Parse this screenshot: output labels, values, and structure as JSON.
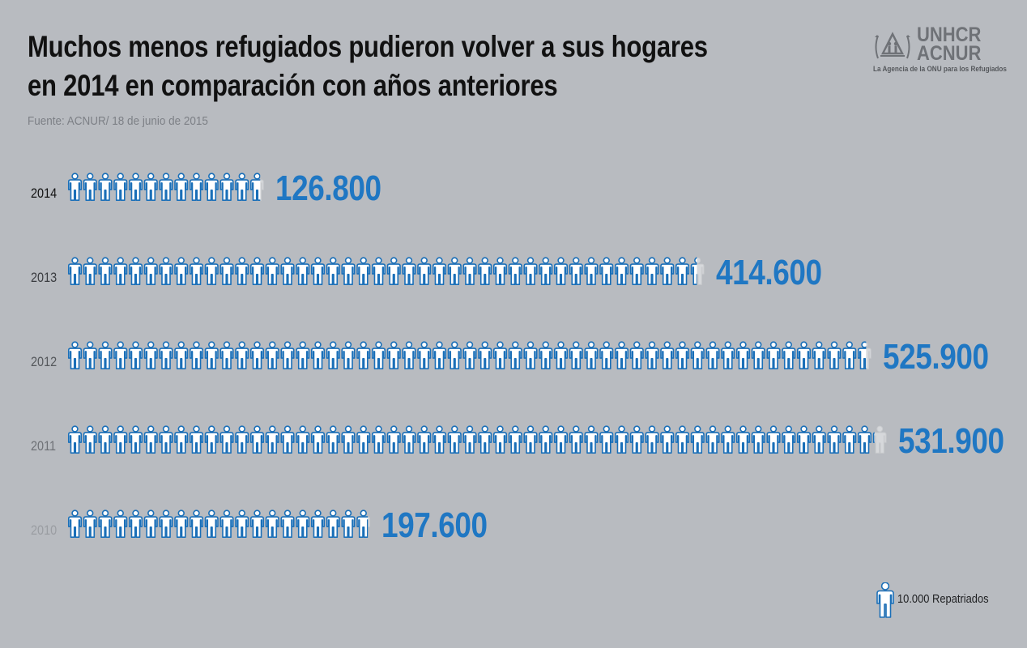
{
  "header": {
    "title_line1": "Muchos menos refugiados pudieron volver a sus hogares",
    "title_line2": "en 2014 en comparación con años anteriores",
    "source": "Fuente: ACNUR/ 18 de junio de 2015"
  },
  "logo": {
    "line1": "UNHCR",
    "line2": "ACNUR",
    "tagline": "La Agencia de la ONU para los Refugiados"
  },
  "legend": {
    "label": "10.000 Repatriados",
    "unit": 10000
  },
  "colors": {
    "background": "#b8bbc0",
    "value": "#1f77c3",
    "icon_stroke": "#1a6fb8",
    "icon_fill": "#ffffff",
    "year_colors": [
      "#111111",
      "#3a3c40",
      "#55585c",
      "#6e7176",
      "#9a9da2"
    ]
  },
  "chart_data": {
    "type": "pictograph",
    "title": "Muchos menos refugiados pudieron volver a sus hogares en 2014 en comparación con años anteriores",
    "unit_per_icon": 10000,
    "categories": [
      "2014",
      "2013",
      "2012",
      "2011",
      "2010"
    ],
    "values": [
      126800,
      414600,
      525900,
      531900,
      197600
    ],
    "value_labels": [
      "126.800",
      "414.600",
      "525.900",
      "531.900",
      "197.600"
    ]
  }
}
